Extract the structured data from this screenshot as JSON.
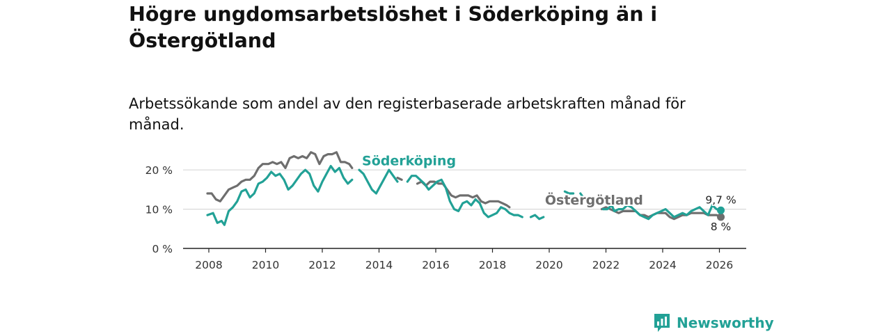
{
  "title": "Högre ungdomsarbetslöshet i Söderköping än i Östergötland",
  "subtitle": "Arbetssökande som andel av den registerbaserade arbetskraften månad för månad.",
  "brand": {
    "name": "Newsworthy",
    "logo_icon": "bar-chart-speech-bubble-icon",
    "color": "#22a196"
  },
  "chart_data": {
    "type": "line",
    "title": "Högre ungdomsarbetslöshet i Söderköping än i Östergötland",
    "subtitle": "Arbetssökande som andel av den registerbaserade arbetskraften månad för månad.",
    "xlabel": "",
    "ylabel": "",
    "xlim": [
      2007.0,
      2027.0
    ],
    "ylim": [
      0,
      25
    ],
    "x_ticks": [
      2008,
      2010,
      2012,
      2014,
      2016,
      2018,
      2020,
      2022,
      2024,
      2026
    ],
    "x_tick_labels": [
      "2008",
      "2010",
      "2012",
      "2014",
      "2016",
      "2018",
      "2020",
      "2022",
      "2024",
      "2026"
    ],
    "y_ticks": [
      0,
      10,
      20
    ],
    "y_tick_labels": [
      "0 %",
      "10 %",
      "20 %"
    ],
    "grid": true,
    "series": [
      {
        "name": "Söderköping",
        "color": "#22a196",
        "end_label": "9,7 %",
        "points": [
          [
            2007.95,
            8.5
          ],
          [
            2008.15,
            9.0
          ],
          [
            2008.3,
            6.5
          ],
          [
            2008.45,
            7.0
          ],
          [
            2008.55,
            6.0
          ],
          [
            2008.7,
            9.5
          ],
          [
            2008.85,
            10.5
          ],
          [
            2009.0,
            12.0
          ],
          [
            2009.15,
            14.5
          ],
          [
            2009.3,
            15.0
          ],
          [
            2009.45,
            13.0
          ],
          [
            2009.6,
            14.0
          ],
          [
            2009.75,
            16.5
          ],
          [
            2009.9,
            17.0
          ],
          [
            2010.05,
            18.0
          ],
          [
            2010.2,
            19.5
          ],
          [
            2010.35,
            18.5
          ],
          [
            2010.5,
            19.0
          ],
          [
            2010.65,
            17.5
          ],
          [
            2010.8,
            15.0
          ],
          [
            2010.95,
            16.0
          ],
          [
            2011.1,
            17.5
          ],
          [
            2011.25,
            19.0
          ],
          [
            2011.4,
            20.0
          ],
          [
            2011.55,
            19.0
          ],
          [
            2011.7,
            16.0
          ],
          [
            2011.85,
            14.5
          ],
          [
            2012.0,
            17.0
          ],
          [
            2012.15,
            19.0
          ],
          [
            2012.3,
            21.0
          ],
          [
            2012.45,
            19.5
          ],
          [
            2012.6,
            20.5
          ],
          [
            2012.75,
            18.0
          ],
          [
            2012.9,
            16.5
          ],
          [
            2013.05,
            17.5
          ],
          null,
          [
            2013.3,
            20.0
          ],
          [
            2013.45,
            19.0
          ],
          [
            2013.6,
            17.0
          ],
          [
            2013.75,
            15.0
          ],
          [
            2013.9,
            14.0
          ],
          [
            2014.05,
            16.0
          ],
          [
            2014.2,
            18.0
          ],
          [
            2014.35,
            20.0
          ],
          [
            2014.5,
            18.5
          ],
          [
            2014.65,
            17.0
          ],
          null,
          [
            2015.0,
            17.0
          ],
          [
            2015.15,
            18.5
          ],
          [
            2015.3,
            18.5
          ],
          [
            2015.45,
            17.5
          ],
          [
            2015.6,
            16.5
          ],
          [
            2015.75,
            15.0
          ],
          [
            2015.9,
            16.0
          ],
          [
            2016.05,
            17.0
          ],
          [
            2016.2,
            17.5
          ],
          [
            2016.35,
            15.5
          ],
          [
            2016.5,
            12.0
          ],
          [
            2016.65,
            10.0
          ],
          [
            2016.8,
            9.5
          ],
          [
            2016.95,
            11.5
          ],
          [
            2017.1,
            12.0
          ],
          [
            2017.25,
            11.0
          ],
          [
            2017.4,
            12.5
          ],
          [
            2017.55,
            11.5
          ],
          [
            2017.7,
            9.0
          ],
          [
            2017.85,
            8.0
          ],
          [
            2018.0,
            8.5
          ],
          [
            2018.15,
            9.0
          ],
          [
            2018.3,
            10.5
          ],
          [
            2018.45,
            10.0
          ],
          [
            2018.6,
            9.0
          ],
          [
            2018.75,
            8.5
          ],
          [
            2018.9,
            8.5
          ],
          [
            2019.05,
            8.0
          ],
          null,
          [
            2019.35,
            8.0
          ],
          [
            2019.5,
            8.5
          ],
          [
            2019.65,
            7.5
          ],
          [
            2019.8,
            8.0
          ],
          null,
          [
            2020.55,
            14.5
          ],
          [
            2020.7,
            14.0
          ],
          [
            2020.85,
            14.0
          ],
          null,
          [
            2021.1,
            14.0
          ],
          [
            2021.2,
            13.0
          ],
          null,
          [
            2021.9,
            10.0
          ],
          [
            2022.05,
            10.0
          ],
          [
            2022.2,
            11.0
          ],
          [
            2022.3,
            9.5
          ],
          [
            2022.45,
            10.0
          ],
          [
            2022.6,
            10.0
          ],
          [
            2022.75,
            11.0
          ],
          [
            2022.9,
            10.5
          ],
          [
            2023.05,
            9.5
          ],
          [
            2023.2,
            8.5
          ],
          [
            2023.35,
            8.0
          ],
          [
            2023.5,
            7.5
          ],
          [
            2023.65,
            8.5
          ],
          [
            2023.8,
            9.0
          ],
          [
            2023.95,
            9.5
          ],
          [
            2024.1,
            10.0
          ],
          [
            2024.25,
            9.0
          ],
          [
            2024.4,
            8.0
          ],
          [
            2024.55,
            8.5
          ],
          [
            2024.7,
            9.0
          ],
          [
            2024.85,
            8.5
          ],
          [
            2025.0,
            9.5
          ],
          [
            2025.15,
            10.0
          ],
          [
            2025.3,
            10.5
          ],
          [
            2025.45,
            9.5
          ],
          [
            2025.6,
            8.5
          ],
          [
            2025.75,
            11.0
          ],
          [
            2025.9,
            10.0
          ],
          [
            2026.05,
            9.7
          ]
        ]
      },
      {
        "name": "Östergötland",
        "color": "#6e6e6e",
        "end_label": "8 %",
        "points": [
          [
            2007.95,
            14.0
          ],
          [
            2008.1,
            14.0
          ],
          [
            2008.25,
            12.5
          ],
          [
            2008.4,
            12.0
          ],
          [
            2008.55,
            13.5
          ],
          [
            2008.7,
            15.0
          ],
          [
            2008.85,
            15.5
          ],
          [
            2009.0,
            16.0
          ],
          [
            2009.15,
            17.0
          ],
          [
            2009.3,
            17.5
          ],
          [
            2009.45,
            17.5
          ],
          [
            2009.6,
            18.5
          ],
          [
            2009.75,
            20.5
          ],
          [
            2009.9,
            21.5
          ],
          [
            2010.1,
            21.5
          ],
          [
            2010.25,
            22.0
          ],
          [
            2010.4,
            21.5
          ],
          [
            2010.55,
            22.0
          ],
          [
            2010.7,
            20.5
          ],
          [
            2010.85,
            23.0
          ],
          [
            2011.0,
            23.5
          ],
          [
            2011.15,
            23.0
          ],
          [
            2011.3,
            23.5
          ],
          [
            2011.45,
            23.0
          ],
          [
            2011.6,
            24.5
          ],
          [
            2011.75,
            24.0
          ],
          [
            2011.9,
            21.5
          ],
          [
            2012.05,
            23.5
          ],
          [
            2012.2,
            24.0
          ],
          [
            2012.35,
            24.0
          ],
          [
            2012.5,
            24.5
          ],
          [
            2012.65,
            22.0
          ],
          [
            2012.8,
            22.0
          ],
          [
            2012.95,
            21.5
          ],
          [
            2013.05,
            20.5
          ],
          null,
          [
            2014.65,
            18.0
          ],
          [
            2014.8,
            17.5
          ],
          null,
          [
            2015.35,
            16.5
          ],
          [
            2015.5,
            17.0
          ],
          [
            2015.65,
            16.0
          ],
          [
            2015.8,
            17.0
          ],
          [
            2015.95,
            17.0
          ],
          [
            2016.1,
            16.5
          ],
          [
            2016.25,
            16.5
          ],
          [
            2016.4,
            15.0
          ],
          [
            2016.55,
            13.5
          ],
          [
            2016.7,
            13.0
          ],
          [
            2016.85,
            13.5
          ],
          [
            2017.0,
            13.5
          ],
          [
            2017.15,
            13.5
          ],
          [
            2017.3,
            13.0
          ],
          [
            2017.45,
            13.5
          ],
          [
            2017.6,
            12.0
          ],
          [
            2017.75,
            11.5
          ],
          [
            2017.9,
            12.0
          ],
          [
            2018.05,
            12.0
          ],
          [
            2018.2,
            12.0
          ],
          [
            2018.35,
            11.5
          ],
          [
            2018.5,
            11.0
          ],
          [
            2018.6,
            10.5
          ],
          null,
          [
            2021.85,
            10.0
          ],
          [
            2022.0,
            10.5
          ],
          [
            2022.15,
            10.0
          ],
          [
            2022.3,
            9.5
          ],
          [
            2022.45,
            9.0
          ],
          [
            2022.6,
            9.5
          ],
          [
            2022.75,
            9.5
          ],
          [
            2022.9,
            9.5
          ],
          [
            2023.05,
            9.5
          ],
          [
            2023.2,
            8.5
          ],
          [
            2023.35,
            8.5
          ],
          [
            2023.5,
            8.0
          ],
          [
            2023.65,
            8.5
          ],
          [
            2023.8,
            9.0
          ],
          [
            2023.95,
            9.0
          ],
          [
            2024.1,
            9.0
          ],
          [
            2024.25,
            8.0
          ],
          [
            2024.4,
            7.5
          ],
          [
            2024.55,
            8.0
          ],
          [
            2024.7,
            8.5
          ],
          [
            2024.85,
            8.5
          ],
          [
            2025.0,
            9.0
          ],
          [
            2025.15,
            9.0
          ],
          [
            2025.3,
            9.0
          ],
          [
            2025.45,
            9.0
          ],
          [
            2025.6,
            8.5
          ],
          [
            2025.75,
            8.5
          ],
          [
            2025.9,
            8.5
          ],
          [
            2026.05,
            8.0
          ]
        ]
      }
    ],
    "annotations": [
      {
        "text": "Söderköping",
        "series": "Söderköping",
        "x": 2013.4,
        "y": 21.2
      },
      {
        "text": "Östergötland",
        "series": "Östergötland",
        "x": 2019.85,
        "y": 11.2
      }
    ]
  }
}
